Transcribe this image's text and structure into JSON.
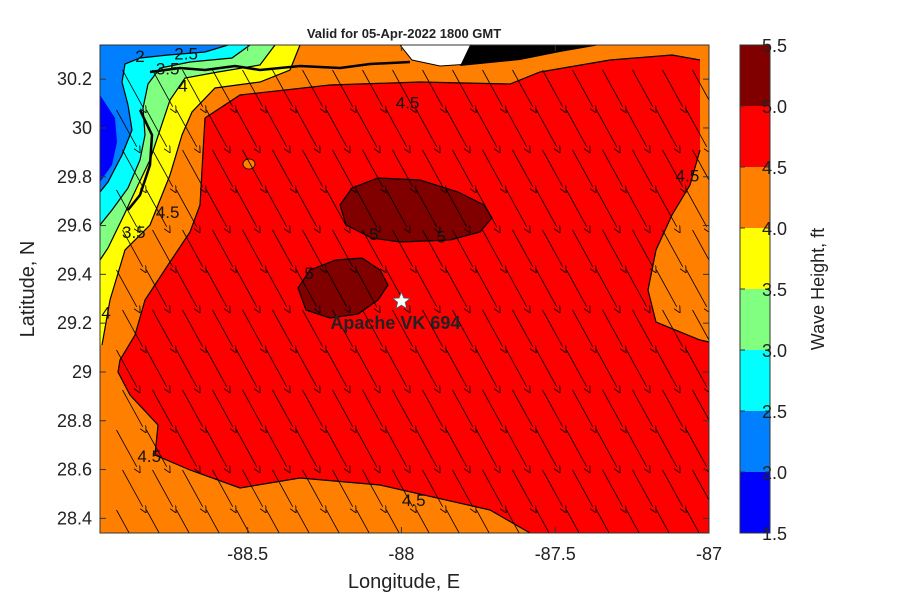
{
  "chart_data": {
    "type": "heatmap",
    "title": "Valid for 05-Apr-2022 1800 GMT",
    "xlabel": "Longitude, E",
    "ylabel": "Latitude, N",
    "xlim": [
      -88.98,
      -87.0
    ],
    "ylim": [
      28.34,
      30.34
    ],
    "x_ticks": [
      -88.5,
      -88,
      -87.5,
      -87
    ],
    "y_ticks": [
      28.4,
      28.6,
      28.8,
      29,
      29.2,
      29.4,
      29.6,
      29.8,
      30,
      30.2
    ],
    "grid": false,
    "colorbar": {
      "label": "Wave Height, ft",
      "range": [
        1.5,
        5.5
      ],
      "ticks": [
        "1.5",
        "2.0",
        "2.5",
        "3.0",
        "3.5",
        "4.0",
        "4.5",
        "5.0",
        "5.5"
      ],
      "levels": [
        {
          "from": 1.5,
          "to": 2.0,
          "color": "#0000ff"
        },
        {
          "from": 2.0,
          "to": 2.5,
          "color": "#0080ff"
        },
        {
          "from": 2.5,
          "to": 3.0,
          "color": "#00ffff"
        },
        {
          "from": 3.0,
          "to": 3.5,
          "color": "#80ff80"
        },
        {
          "from": 3.5,
          "to": 4.0,
          "color": "#ffff00"
        },
        {
          "from": 4.0,
          "to": 4.5,
          "color": "#ff8000"
        },
        {
          "from": 4.5,
          "to": 5.0,
          "color": "#ff0000"
        },
        {
          "from": 5.0,
          "to": 5.5,
          "color": "#800000"
        }
      ]
    },
    "contour_labels": [
      {
        "text": "4.5",
        "lon": -87.98,
        "lat": 30.08
      },
      {
        "text": "4.5",
        "lon": -87.07,
        "lat": 29.78
      },
      {
        "text": "4.5",
        "lon": -88.76,
        "lat": 29.63
      },
      {
        "text": "4.5",
        "lon": -88.82,
        "lat": 28.63
      },
      {
        "text": "4.5",
        "lon": -87.96,
        "lat": 28.45
      },
      {
        "text": "5",
        "lon": -88.09,
        "lat": 29.54
      },
      {
        "text": "5",
        "lon": -87.87,
        "lat": 29.53
      },
      {
        "text": "5",
        "lon": -88.3,
        "lat": 29.38
      },
      {
        "text": "4",
        "lon": -88.96,
        "lat": 29.22
      },
      {
        "text": "4",
        "lon": -88.71,
        "lat": 30.15
      },
      {
        "text": "3.5",
        "lon": -88.87,
        "lat": 29.55
      },
      {
        "text": "3.5",
        "lon": -88.76,
        "lat": 30.22
      },
      {
        "text": "2",
        "lon": -88.85,
        "lat": 30.27
      },
      {
        "text": "2.5",
        "lon": -88.7,
        "lat": 30.28
      }
    ],
    "station": {
      "name": "Apache VK 694",
      "lon": -88.0,
      "lat": 29.29
    },
    "wave_direction": {
      "dx": -0.55,
      "dy": -1.0
    }
  }
}
